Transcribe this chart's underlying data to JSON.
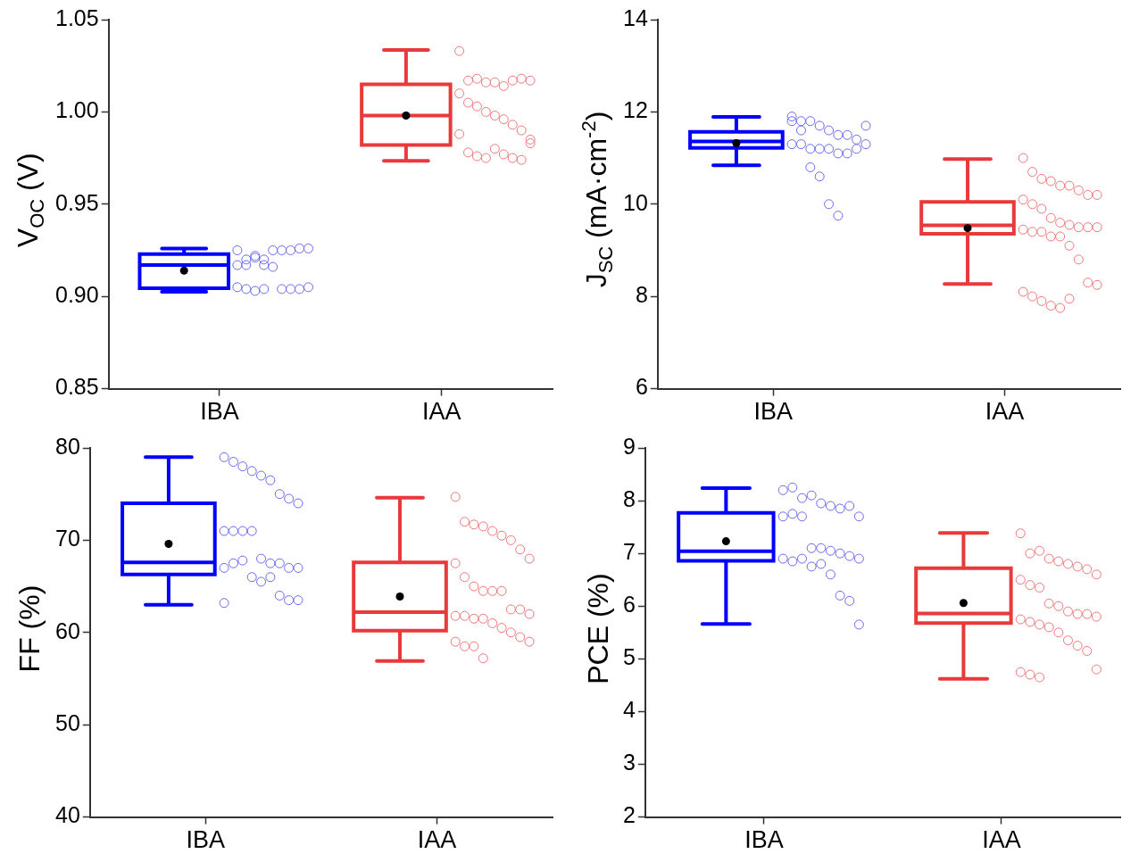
{
  "chart_data": [
    {
      "type": "box",
      "ylabel": "V$_{OC}$ (V)",
      "categories": [
        "IBA",
        "IAA"
      ],
      "colors": [
        "#0000ff",
        "#e83a3a"
      ],
      "ylim": [
        0.85,
        1.05
      ],
      "yticks": [
        0.85,
        {
          "value": 0.9,
          "label": "0.90"
        },
        0.95,
        {
          "value": 1.0,
          "label": "1.00"
        },
        1.05
      ],
      "grid": false,
      "legend": false,
      "marker": "circle",
      "boxes": [
        {
          "low": 0.9025,
          "q1": 0.9045,
          "median": 0.917,
          "q3": 0.923,
          "high": 0.926,
          "mean": 0.914
        },
        {
          "low": 0.9735,
          "q1": 0.982,
          "median": 0.998,
          "q3": 1.015,
          "high": 1.0335,
          "mean": 0.998
        }
      ],
      "series": [
        {
          "type": "scatter",
          "color": "#6b6bee",
          "x": [
            "IBA",
            "IBA",
            "IBA",
            "IBA",
            "IBA",
            "IBA",
            "IBA",
            "IBA",
            "IBA",
            "IBA",
            "IBA",
            "IBA",
            "IBA",
            "IBA",
            "IBA",
            "IBA",
            "IBA",
            "IBA",
            "IBA",
            "IBA",
            "IBA",
            "IBA"
          ],
          "values": [
            0.917,
            0.917,
            0.922,
            0.92,
            0.925,
            0.925,
            0.925,
            0.926,
            0.926,
            0.925,
            0.92,
            0.921,
            0.917,
            0.916,
            0.904,
            0.904,
            0.904,
            0.905,
            0.905,
            0.904,
            0.903,
            0.904
          ]
        },
        {
          "type": "scatter",
          "color": "#f07878",
          "x": [
            "IAA",
            "IAA",
            "IAA",
            "IAA",
            "IAA",
            "IAA",
            "IAA",
            "IAA",
            "IAA",
            "IAA",
            "IAA",
            "IAA",
            "IAA",
            "IAA",
            "IAA",
            "IAA",
            "IAA",
            "IAA",
            "IAA",
            "IAA",
            "IAA",
            "IAA",
            "IAA",
            "IAA",
            "IAA",
            "IAA",
            "IAA"
          ],
          "values": [
            1.033,
            1.017,
            1.018,
            1.016,
            1.016,
            1.014,
            1.017,
            1.018,
            1.017,
            1.01,
            1.005,
            1.003,
            1.0,
            0.998,
            0.996,
            0.993,
            0.99,
            0.985,
            0.988,
            0.978,
            0.976,
            0.975,
            0.98,
            0.977,
            0.975,
            0.974,
            0.983
          ]
        }
      ]
    },
    {
      "type": "box",
      "ylabel": "J$_{SC}$ (mA·cm$^{-2}$)",
      "categories": [
        "IBA",
        "IAA"
      ],
      "colors": [
        "#0000ff",
        "#e83a3a"
      ],
      "ylim": [
        6,
        14
      ],
      "yticks": [
        6,
        8,
        10,
        12,
        14
      ],
      "grid": false,
      "legend": false,
      "marker": "circle",
      "boxes": [
        {
          "low": 10.84,
          "q1": 11.22,
          "median": 11.36,
          "q3": 11.57,
          "high": 11.89,
          "mean": 11.32
        },
        {
          "low": 8.27,
          "q1": 9.36,
          "median": 9.54,
          "q3": 10.05,
          "high": 10.98,
          "mean": 9.48
        }
      ],
      "series": [
        {
          "type": "scatter",
          "color": "#6b6bee",
          "x": [
            "IBA",
            "IBA",
            "IBA",
            "IBA",
            "IBA",
            "IBA",
            "IBA",
            "IBA",
            "IBA",
            "IBA",
            "IBA",
            "IBA",
            "IBA",
            "IBA",
            "IBA",
            "IBA",
            "IBA",
            "IBA",
            "IBA",
            "IBA",
            "IBA",
            "IBA",
            "IBA",
            "IBA"
          ],
          "values": [
            11.9,
            11.8,
            11.8,
            11.7,
            11.6,
            11.5,
            11.5,
            11.4,
            11.3,
            11.3,
            11.3,
            11.2,
            11.2,
            11.2,
            11.1,
            11.1,
            11.2,
            11.7,
            11.8,
            11.6,
            10.8,
            10.6,
            10.0,
            9.75
          ]
        },
        {
          "type": "scatter",
          "color": "#f07878",
          "x": [
            "IAA",
            "IAA",
            "IAA",
            "IAA",
            "IAA",
            "IAA",
            "IAA",
            "IAA",
            "IAA",
            "IAA",
            "IAA",
            "IAA",
            "IAA",
            "IAA",
            "IAA",
            "IAA",
            "IAA",
            "IAA",
            "IAA",
            "IAA",
            "IAA",
            "IAA",
            "IAA",
            "IAA",
            "IAA",
            "IAA",
            "IAA",
            "IAA",
            "IAA",
            "IAA",
            "IAA",
            "IAA",
            "IAA"
          ],
          "values": [
            11.0,
            10.7,
            10.55,
            10.5,
            10.4,
            10.4,
            10.3,
            10.2,
            10.2,
            10.1,
            10.0,
            9.9,
            9.7,
            9.6,
            9.55,
            9.5,
            9.5,
            9.5,
            9.45,
            9.4,
            9.4,
            9.3,
            9.3,
            9.1,
            8.8,
            8.3,
            8.25,
            8.1,
            8.0,
            7.9,
            7.8,
            7.75,
            7.95
          ]
        }
      ]
    },
    {
      "type": "box",
      "ylabel": "FF (%)",
      "categories": [
        "IBA",
        "IAA"
      ],
      "colors": [
        "#0000ff",
        "#e83a3a"
      ],
      "ylim": [
        40,
        80
      ],
      "yticks": [
        40,
        50,
        60,
        70,
        80
      ],
      "grid": false,
      "legend": false,
      "marker": "circle",
      "boxes": [
        {
          "low": 63.0,
          "q1": 66.3,
          "median": 67.6,
          "q3": 74.0,
          "high": 79.0,
          "mean": 69.6
        },
        {
          "low": 56.9,
          "q1": 60.2,
          "median": 62.2,
          "q3": 67.6,
          "high": 74.6,
          "mean": 63.9
        }
      ],
      "series": [
        {
          "type": "scatter",
          "color": "#6b6bee",
          "x": [
            "IBA",
            "IBA",
            "IBA",
            "IBA",
            "IBA",
            "IBA",
            "IBA",
            "IBA",
            "IBA",
            "IBA",
            "IBA",
            "IBA",
            "IBA",
            "IBA",
            "IBA",
            "IBA",
            "IBA",
            "IBA",
            "IBA",
            "IBA",
            "IBA",
            "IBA",
            "IBA",
            "IBA",
            "IBA",
            "IBA",
            "IBA",
            "IBA"
          ],
          "values": [
            79,
            78.5,
            78,
            77.5,
            77,
            76.5,
            75,
            74.5,
            74,
            71,
            71,
            71,
            71,
            68,
            67.5,
            67.5,
            67,
            67,
            67,
            67.5,
            67.8,
            66,
            65.5,
            66,
            64,
            63.5,
            63.5,
            63.2
          ]
        },
        {
          "type": "scatter",
          "color": "#f07878",
          "x": [
            "IAA",
            "IAA",
            "IAA",
            "IAA",
            "IAA",
            "IAA",
            "IAA",
            "IAA",
            "IAA",
            "IAA",
            "IAA",
            "IAA",
            "IAA",
            "IAA",
            "IAA",
            "IAA",
            "IAA",
            "IAA",
            "IAA",
            "IAA",
            "IAA",
            "IAA",
            "IAA",
            "IAA",
            "IAA",
            "IAA",
            "IAA",
            "IAA",
            "IAA",
            "IAA",
            "IAA"
          ],
          "values": [
            74.7,
            72,
            71.7,
            71.5,
            71,
            70.5,
            70,
            69,
            68,
            67.5,
            66,
            65,
            64.5,
            64.5,
            64.5,
            62.5,
            62.5,
            62,
            61.8,
            61.8,
            61.5,
            61.5,
            61,
            60.5,
            60,
            59.5,
            59,
            59,
            58.5,
            58.5,
            57.2
          ]
        }
      ]
    },
    {
      "type": "box",
      "ylabel": "PCE (%)",
      "categories": [
        "IBA",
        "IAA"
      ],
      "colors": [
        "#0000ff",
        "#e83a3a"
      ],
      "ylim": [
        2,
        9
      ],
      "yticks": [
        2,
        3,
        4,
        5,
        6,
        7,
        8,
        9
      ],
      "grid": false,
      "legend": false,
      "marker": "circle",
      "boxes": [
        {
          "low": 5.66,
          "q1": 6.86,
          "median": 7.04,
          "q3": 7.77,
          "high": 8.24,
          "mean": 7.23
        },
        {
          "low": 4.62,
          "q1": 5.68,
          "median": 5.86,
          "q3": 6.72,
          "high": 7.39,
          "mean": 6.06
        }
      ],
      "series": [
        {
          "type": "scatter",
          "color": "#6b6bee",
          "x": [
            "IBA",
            "IBA",
            "IBA",
            "IBA",
            "IBA",
            "IBA",
            "IBA",
            "IBA",
            "IBA",
            "IBA",
            "IBA",
            "IBA",
            "IBA",
            "IBA",
            "IBA",
            "IBA",
            "IBA",
            "IBA",
            "IBA",
            "IBA",
            "IBA",
            "IBA",
            "IBA",
            "IBA",
            "IBA",
            "IBA",
            "IBA"
          ],
          "values": [
            8.2,
            8.25,
            8.05,
            8.1,
            7.95,
            7.9,
            7.85,
            7.9,
            7.7,
            7.7,
            7.75,
            7.7,
            7.1,
            7.1,
            7.05,
            7.0,
            6.95,
            6.9,
            6.9,
            6.85,
            6.9,
            6.75,
            6.8,
            6.6,
            6.2,
            6.1,
            5.65
          ]
        },
        {
          "type": "scatter",
          "color": "#f07878",
          "x": [
            "IAA",
            "IAA",
            "IAA",
            "IAA",
            "IAA",
            "IAA",
            "IAA",
            "IAA",
            "IAA",
            "IAA",
            "IAA",
            "IAA",
            "IAA",
            "IAA",
            "IAA",
            "IAA",
            "IAA",
            "IAA",
            "IAA",
            "IAA",
            "IAA",
            "IAA",
            "IAA",
            "IAA",
            "IAA",
            "IAA",
            "IAA",
            "IAA",
            "IAA",
            "IAA"
          ],
          "values": [
            7.38,
            7.0,
            7.05,
            6.9,
            6.85,
            6.8,
            6.75,
            6.7,
            6.6,
            6.5,
            6.4,
            6.35,
            6.05,
            6.0,
            5.9,
            5.85,
            5.85,
            5.8,
            5.75,
            5.7,
            5.65,
            5.6,
            5.5,
            5.35,
            5.25,
            5.15,
            4.8,
            4.75,
            4.7,
            4.65
          ]
        }
      ]
    }
  ]
}
